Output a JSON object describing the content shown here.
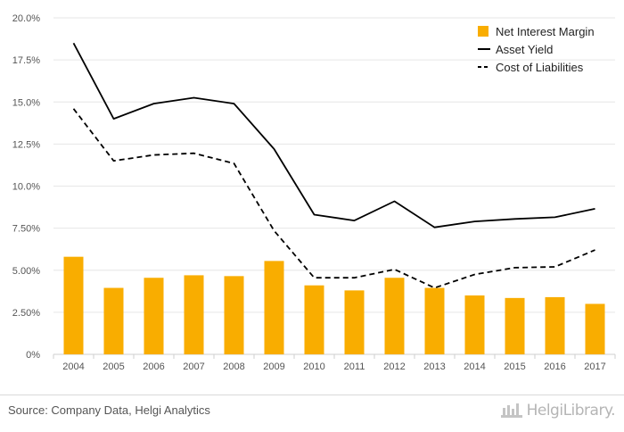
{
  "chart_data": {
    "type": "bar",
    "categories": [
      "2004",
      "2005",
      "2006",
      "2007",
      "2008",
      "2009",
      "2010",
      "2011",
      "2012",
      "2013",
      "2014",
      "2015",
      "2016",
      "2017"
    ],
    "series": [
      {
        "name": "Net Interest Margin",
        "type": "bar",
        "color": "#f9ad00",
        "values": [
          5.8,
          3.95,
          4.55,
          4.7,
          4.65,
          5.55,
          4.1,
          3.8,
          4.55,
          3.95,
          3.5,
          3.35,
          3.4,
          3.0
        ]
      },
      {
        "name": "Asset Yield",
        "type": "line",
        "style": "solid",
        "color": "#000000",
        "values": [
          18.5,
          14.0,
          14.9,
          15.25,
          14.9,
          12.2,
          8.3,
          7.95,
          9.1,
          7.55,
          7.9,
          8.05,
          8.15,
          8.65
        ]
      },
      {
        "name": "Cost of Liabilities",
        "type": "line",
        "style": "dashed",
        "color": "#000000",
        "values": [
          14.6,
          11.5,
          11.85,
          11.95,
          11.35,
          7.35,
          4.55,
          4.55,
          5.05,
          3.95,
          4.75,
          5.15,
          5.2,
          6.2
        ]
      }
    ],
    "ylim": [
      0,
      20
    ],
    "yticks": [
      "0%",
      "2.50%",
      "5.00%",
      "7.50%",
      "10.0%",
      "12.5%",
      "15.0%",
      "17.5%",
      "20.0%"
    ],
    "grid": "horizontal",
    "legend": "top-right"
  },
  "footer": {
    "source": "Source: Company Data, Helgi Analytics",
    "brand": "HelgiLibrary."
  }
}
